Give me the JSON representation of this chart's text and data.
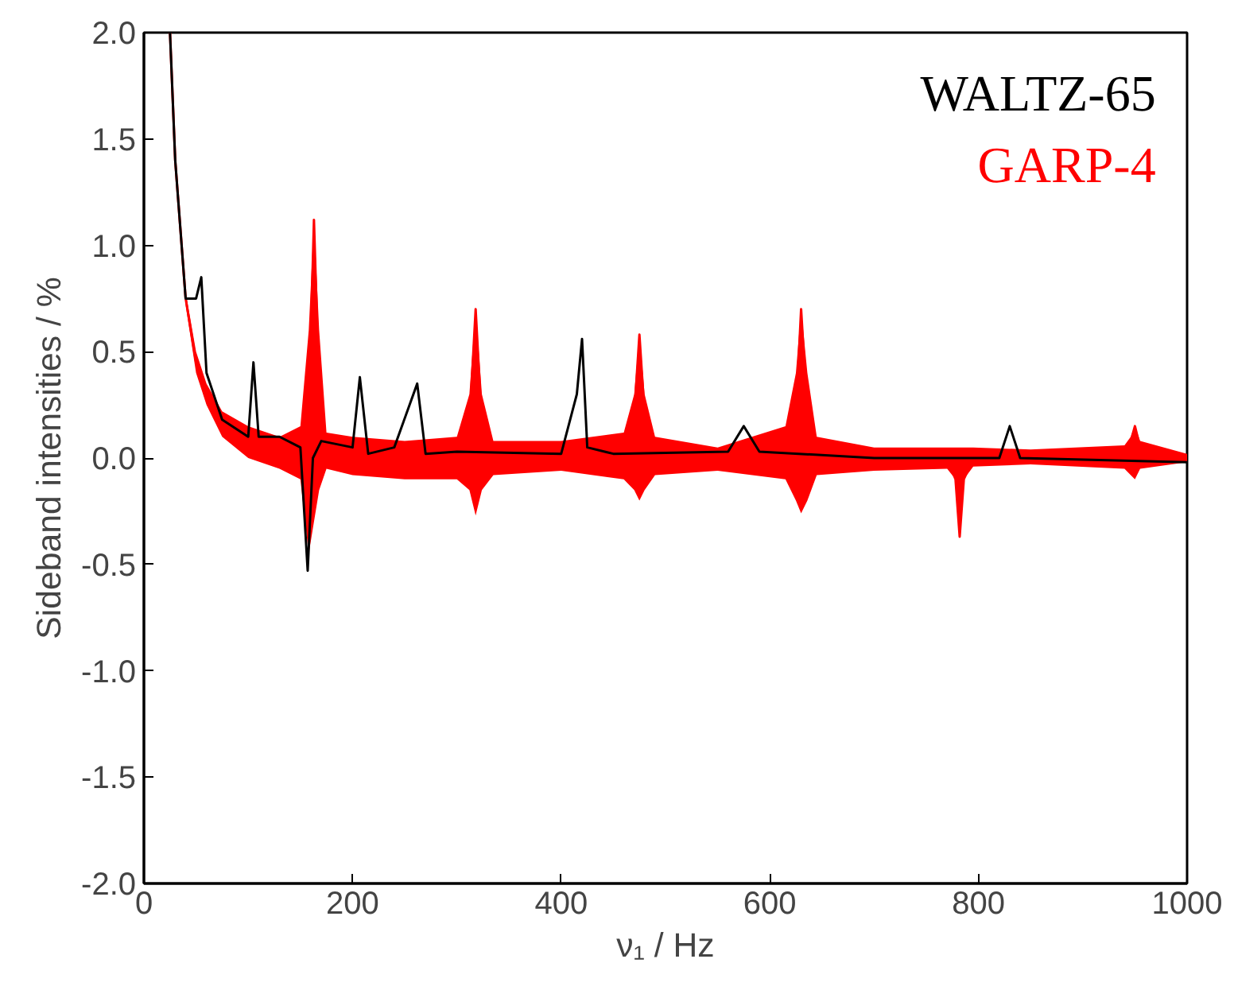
{
  "chart_data": {
    "type": "line",
    "xlabel": "ν₁ / Hz",
    "ylabel": "Sideband intensities / %",
    "xlim": [
      0,
      1000
    ],
    "xticks": [
      0,
      200,
      400,
      600,
      800,
      1000
    ],
    "ylim": [
      -2,
      2
    ],
    "yticks": [
      {
        "value": -2,
        "label": "-2.0"
      },
      {
        "value": -1.5,
        "label": "-1.5"
      },
      {
        "value": -1,
        "label": "-1.0"
      },
      {
        "value": -0.5,
        "label": "-0.5"
      },
      {
        "value": 0,
        "label": "0.0"
      },
      {
        "value": 0.5,
        "label": "0.5"
      },
      {
        "value": 1,
        "label": "1.0"
      },
      {
        "value": 1.5,
        "label": "1.5"
      },
      {
        "value": 2,
        "label": "2.0"
      }
    ],
    "grid": false,
    "legend": "top right",
    "marker": "none",
    "line_style": "solid",
    "series": [
      {
        "name": "WALTZ-65",
        "color": "#000000",
        "x": [
          25,
          30,
          40,
          50,
          55,
          60,
          75,
          100,
          105,
          110,
          130,
          150,
          157,
          162,
          170,
          200,
          207,
          215,
          240,
          262,
          270,
          300,
          400,
          415,
          420,
          425,
          450,
          560,
          575,
          590,
          700,
          820,
          830,
          840,
          1000
        ],
        "values": [
          2.0,
          1.4,
          0.75,
          0.75,
          0.85,
          0.4,
          0.18,
          0.1,
          0.45,
          0.1,
          0.1,
          0.05,
          -0.53,
          0.0,
          0.08,
          0.05,
          0.38,
          0.02,
          0.05,
          0.35,
          0.02,
          0.03,
          0.02,
          0.3,
          0.56,
          0.05,
          0.02,
          0.03,
          0.15,
          0.03,
          0.0,
          0.0,
          0.15,
          0.0,
          -0.02
        ]
      },
      {
        "name": "GARP-4",
        "color": "#ff0000",
        "x": [
          25,
          30,
          40,
          50,
          60,
          75,
          100,
          130,
          150,
          158,
          163,
          168,
          175,
          200,
          250,
          300,
          312,
          318,
          324,
          335,
          400,
          460,
          470,
          475,
          480,
          490,
          550,
          615,
          625,
          630,
          636,
          645,
          700,
          770,
          778,
          782,
          786,
          795,
          850,
          940,
          946,
          950,
          955,
          1000
        ],
        "values": [
          2.0,
          1.4,
          0.75,
          0.45,
          0.32,
          0.2,
          0.1,
          0.06,
          0.05,
          0.2,
          1.12,
          0.3,
          0.05,
          0.04,
          0.03,
          0.02,
          0.15,
          0.7,
          0.15,
          0.02,
          0.01,
          0.05,
          0.2,
          0.58,
          0.2,
          0.02,
          0.01,
          0.05,
          0.2,
          0.7,
          0.2,
          0.02,
          0.01,
          0.0,
          -0.1,
          -0.37,
          -0.1,
          0.0,
          0.0,
          0.02,
          0.08,
          0.15,
          0.05,
          0.0
        ],
        "lower": [
          2.0,
          1.4,
          0.72,
          0.4,
          0.25,
          0.1,
          0.0,
          -0.05,
          -0.1,
          -0.45,
          -0.3,
          -0.15,
          -0.05,
          -0.08,
          -0.1,
          -0.1,
          -0.15,
          -0.27,
          -0.15,
          -0.08,
          -0.06,
          -0.1,
          -0.15,
          -0.2,
          -0.15,
          -0.08,
          -0.06,
          -0.1,
          -0.2,
          -0.26,
          -0.2,
          -0.08,
          -0.06,
          -0.05,
          -0.1,
          -0.37,
          -0.1,
          -0.04,
          -0.03,
          -0.05,
          -0.08,
          -0.1,
          -0.05,
          -0.02
        ],
        "upper": [
          2.0,
          1.45,
          0.78,
          0.5,
          0.35,
          0.22,
          0.15,
          0.1,
          0.15,
          0.6,
          1.12,
          0.6,
          0.12,
          0.1,
          0.08,
          0.1,
          0.3,
          0.7,
          0.3,
          0.08,
          0.08,
          0.12,
          0.3,
          0.58,
          0.3,
          0.1,
          0.05,
          0.15,
          0.4,
          0.7,
          0.4,
          0.1,
          0.05,
          0.05,
          0.05,
          0.05,
          0.05,
          0.05,
          0.04,
          0.06,
          0.1,
          0.15,
          0.08,
          0.02
        ]
      }
    ]
  }
}
